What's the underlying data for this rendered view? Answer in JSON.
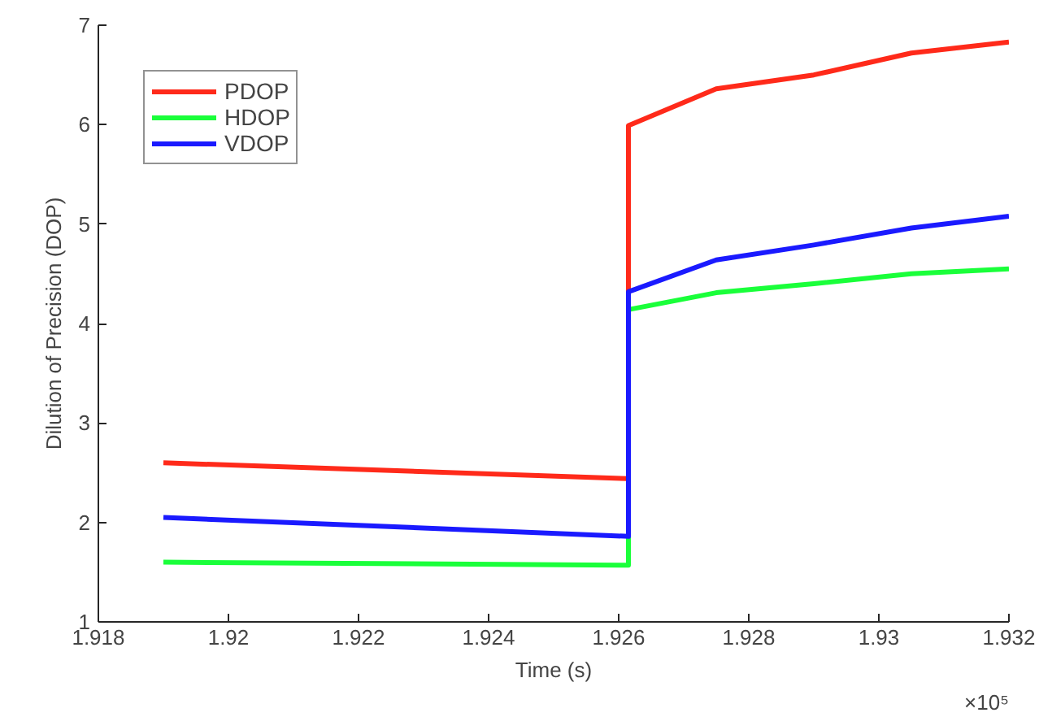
{
  "chart_data": {
    "type": "line",
    "xlabel": "Time (s)",
    "ylabel": "Dilution of Precision (DOP)",
    "x": [
      1.919,
      1.92615,
      1.92615,
      1.9275,
      1.929,
      1.9305,
      1.932
    ],
    "series": [
      {
        "name": "PDOP",
        "color": "#ff2a1a",
        "values": [
          2.6,
          2.44,
          5.99,
          6.36,
          6.5,
          6.72,
          6.83
        ]
      },
      {
        "name": "HDOP",
        "color": "#1aff3a",
        "values": [
          1.6,
          1.57,
          4.14,
          4.31,
          4.4,
          4.5,
          4.55
        ]
      },
      {
        "name": "VDOP",
        "color": "#1a1aff",
        "values": [
          2.05,
          1.86,
          4.32,
          4.64,
          4.79,
          4.96,
          5.08
        ]
      }
    ],
    "xlim": [
      1.918,
      1.932
    ],
    "ylim": [
      1,
      7
    ],
    "xticks": [
      1.918,
      1.92,
      1.922,
      1.924,
      1.926,
      1.928,
      1.93,
      1.932
    ],
    "yticks": [
      1,
      2,
      3,
      4,
      5,
      6,
      7
    ],
    "annotations": [
      "×10⁵"
    ],
    "grid": false,
    "legend": "top left"
  }
}
